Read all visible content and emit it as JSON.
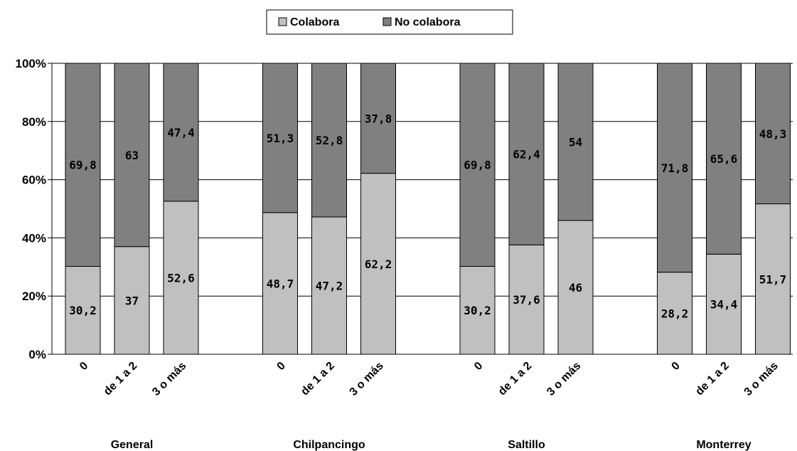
{
  "chart_data": {
    "type": "bar",
    "stacked": "percent",
    "groups": [
      {
        "name": "General",
        "categories": [
          "0",
          "de 1 a 2",
          "3 o más"
        ]
      },
      {
        "name": "Chilpancingo",
        "categories": [
          "0",
          "de 1 a 2",
          "3 o más"
        ]
      },
      {
        "name": "Saltillo",
        "categories": [
          "0",
          "de 1 a 2",
          "3 o más"
        ]
      },
      {
        "name": "Monterrey",
        "categories": [
          "0",
          "de 1 a 2",
          "3 o más"
        ]
      }
    ],
    "series": [
      {
        "name": "Colabora",
        "color": "#c0c0c0",
        "values": [
          30.2,
          37,
          52.6,
          48.7,
          47.2,
          62.2,
          30.2,
          37.6,
          46,
          28.2,
          34.4,
          51.7
        ],
        "labels": [
          "30,2",
          "37",
          "52,6",
          "48,7",
          "47,2",
          "62,2",
          "30,2",
          "37,6",
          "46",
          "28,2",
          "34,4",
          "51,7"
        ]
      },
      {
        "name": "No colabora",
        "color": "#808080",
        "values": [
          69.8,
          63,
          47.4,
          51.3,
          52.8,
          37.8,
          69.8,
          62.4,
          54,
          71.8,
          65.6,
          48.3
        ],
        "labels": [
          "69,8",
          "63",
          "47,4",
          "51,3",
          "52,8",
          "37,8",
          "69,8",
          "62,4",
          "54",
          "71,8",
          "65,6",
          "48,3"
        ]
      }
    ],
    "ylim": [
      0,
      100
    ],
    "yticks": [
      "0%",
      "20%",
      "40%",
      "60%",
      "80%",
      "100%"
    ],
    "grid": true,
    "legend_position": "top-center"
  }
}
